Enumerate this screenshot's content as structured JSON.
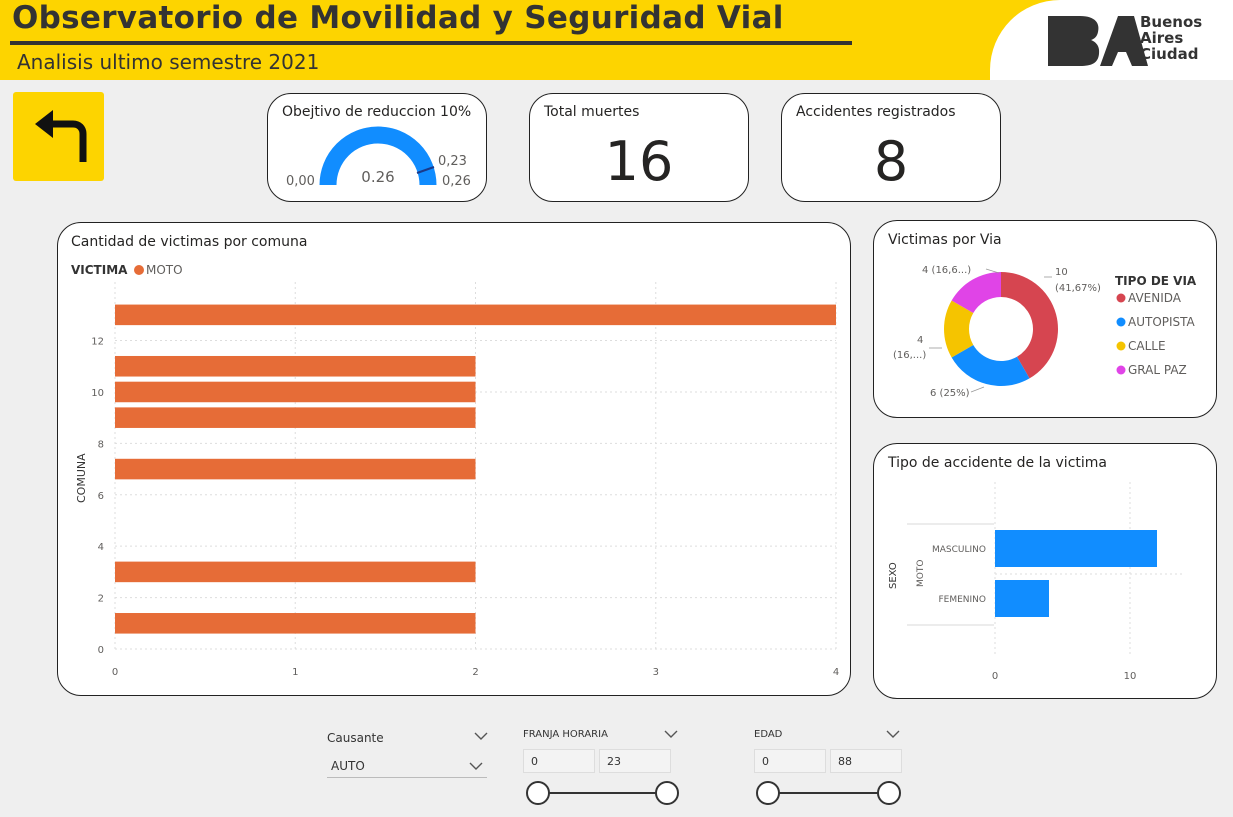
{
  "header": {
    "title": "Observatorio de Movilidad y Seguridad Vial",
    "subtitle": "Analisis ultimo semestre 2021",
    "logo_lines": [
      "Buenos",
      "Aires",
      "Ciudad"
    ],
    "logo_mark": "BA"
  },
  "kpis": {
    "gauge": {
      "title": "Obejtivo de reduccion 10%",
      "value_label": "0.26",
      "min_label": "0,00",
      "target_label": "0,23",
      "max_label": "0,26",
      "value": 0.26,
      "min": 0,
      "max": 0.26,
      "target": 0.23
    },
    "deaths": {
      "title": "Total muertes",
      "value": "16"
    },
    "accidents": {
      "title": "Accidentes registrados",
      "value": "8"
    }
  },
  "colors": {
    "yellow": "#fdd400",
    "orange": "#e66c37",
    "blue": "#118dff",
    "red": "#d64550",
    "gold": "#f5c400",
    "magenta": "#e044e7"
  },
  "charts": {
    "comuna": {
      "title": "Cantidad de victimas por comuna",
      "legend_title": "VICTIMA",
      "legend_item": "MOTO",
      "y_label": "COMUNA"
    },
    "via": {
      "title": "Victimas por Via",
      "legend_title": "TIPO DE VIA",
      "labels": [
        "10",
        "(41,67%)",
        "6 (25%)",
        "4",
        "(16,...)",
        "4 (16,6...)"
      ]
    },
    "accidente": {
      "title": "Tipo de accidente de la victima",
      "y_label": "SEXO",
      "group_label": "MOTO"
    }
  },
  "chart_data": [
    {
      "type": "bar",
      "title": "Cantidad de victimas por comuna",
      "ylabel": "COMUNA",
      "xlabel": "",
      "orientation": "horizontal",
      "series": [
        {
          "name": "MOTO",
          "points": [
            {
              "y": 1,
              "x": 2
            },
            {
              "y": 3,
              "x": 2
            },
            {
              "y": 7,
              "x": 2
            },
            {
              "y": 9,
              "x": 2
            },
            {
              "y": 10,
              "x": 2
            },
            {
              "y": 11,
              "x": 2
            },
            {
              "y": 13,
              "x": 4
            }
          ]
        }
      ],
      "xlim": [
        0,
        4
      ],
      "ylim": [
        0,
        13.5
      ],
      "xticks": [
        0,
        1,
        2,
        3,
        4
      ],
      "yticks": [
        0,
        2,
        4,
        6,
        8,
        10,
        12
      ]
    },
    {
      "type": "pie",
      "title": "Victimas por Via",
      "legend_title": "TIPO DE VIA",
      "categories": [
        "AVENIDA",
        "AUTOPISTA",
        "CALLE",
        "GRAL PAZ"
      ],
      "values": [
        10,
        6,
        4,
        4
      ]
    },
    {
      "type": "bar",
      "title": "Tipo de accidente de la victima",
      "orientation": "horizontal",
      "categories": [
        "MASCULINO",
        "FEMENINO"
      ],
      "values": [
        12,
        4
      ],
      "ylabel": "SEXO",
      "group": "MOTO",
      "xlim": [
        0,
        14
      ],
      "xticks": [
        0,
        10
      ]
    }
  ],
  "slicers": {
    "causante": {
      "label": "Causante",
      "value": "AUTO"
    },
    "franja": {
      "label": "FRANJA HORARIA",
      "min": "0",
      "max": "23"
    },
    "edad": {
      "label": "EDAD",
      "min": "0",
      "max": "88"
    }
  }
}
